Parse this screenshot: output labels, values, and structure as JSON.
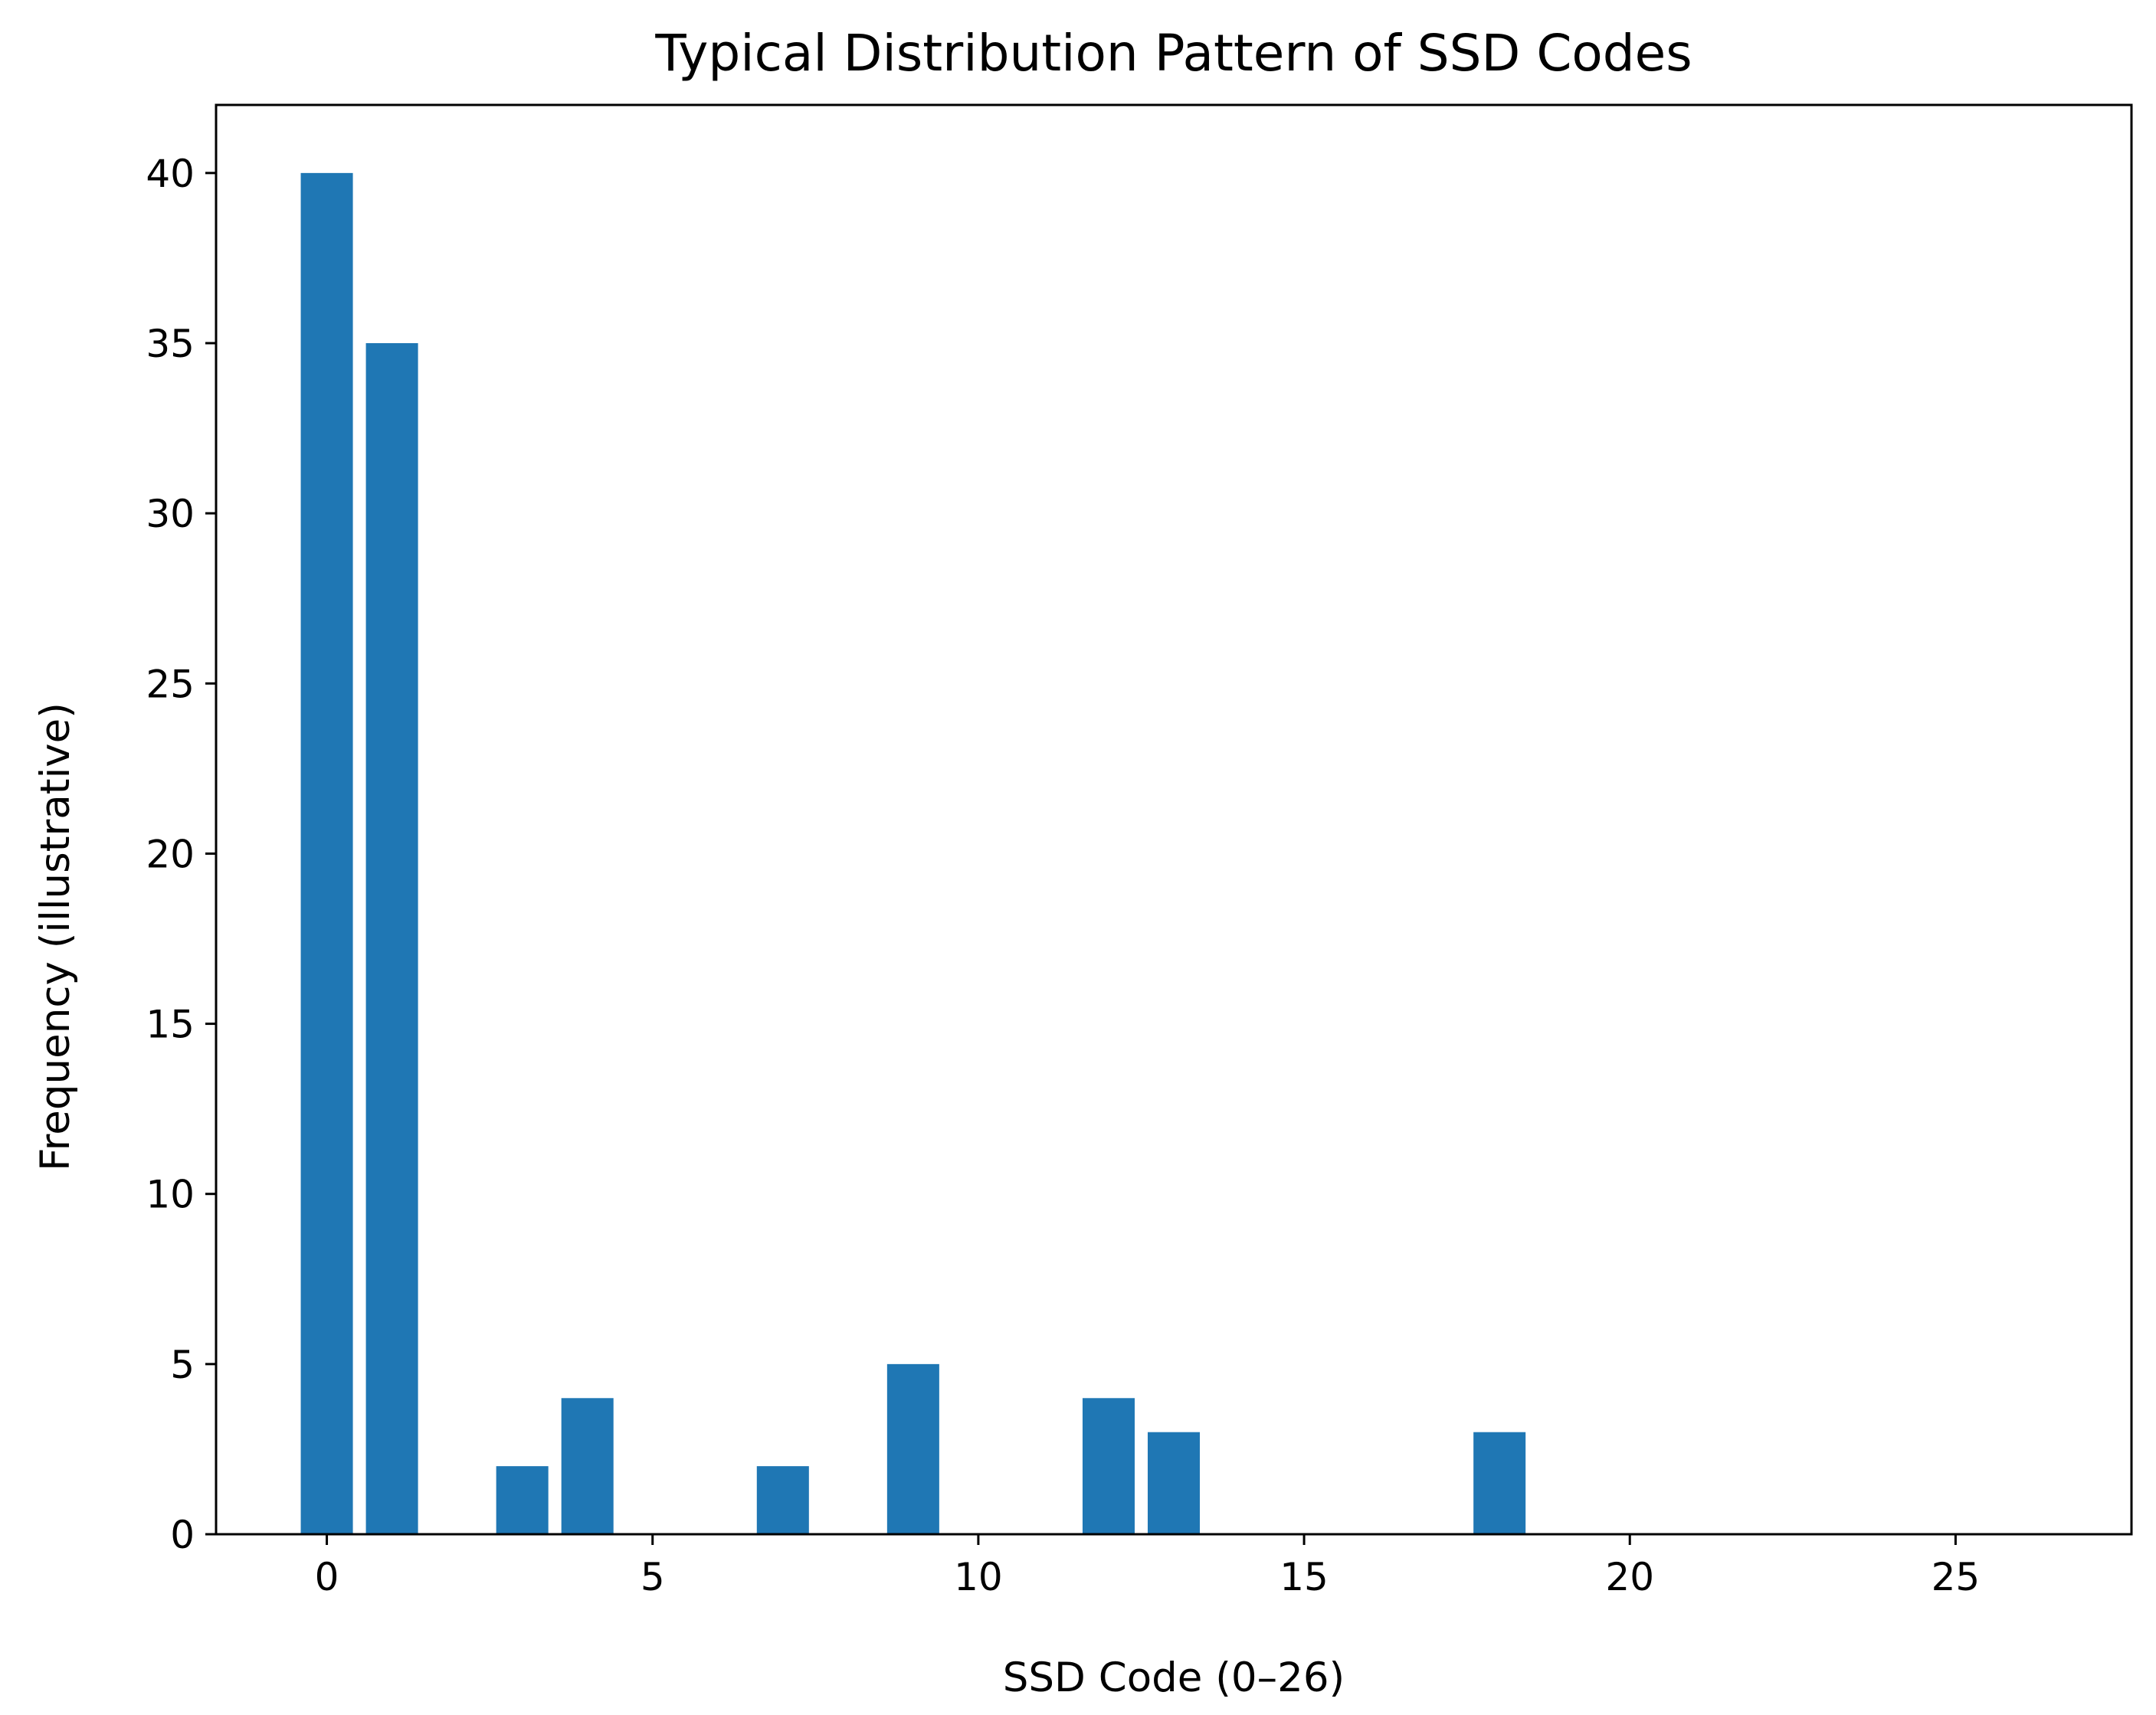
{
  "chart_data": {
    "type": "bar",
    "title": "Typical Distribution Pattern of SSD Codes",
    "xlabel": "SSD Code (0–26)",
    "ylabel": "Frequency (illustrative)",
    "x": [
      0,
      1,
      2,
      3,
      4,
      5,
      6,
      7,
      8,
      9,
      10,
      11,
      12,
      13,
      14,
      15,
      16,
      17,
      18,
      19,
      20,
      21,
      22,
      23,
      24,
      25,
      26
    ],
    "values": [
      40,
      35,
      0,
      2,
      4,
      0,
      0,
      2,
      0,
      5,
      0,
      0,
      4,
      3,
      0,
      0,
      0,
      0,
      3,
      0,
      0,
      0,
      0,
      0,
      0,
      0,
      0
    ],
    "xlim": [
      -1.7,
      27.7
    ],
    "ylim": [
      0,
      42
    ],
    "xticks": [
      0,
      5,
      10,
      15,
      20,
      25
    ],
    "yticks": [
      0,
      5,
      10,
      15,
      20,
      25,
      30,
      35,
      40
    ],
    "xtick_labels": [
      "0",
      "5",
      "10",
      "15",
      "20",
      "25"
    ],
    "ytick_labels": [
      "0",
      "5",
      "10",
      "15",
      "20",
      "25",
      "30",
      "35",
      "40"
    ],
    "bar_width_units": 0.8,
    "bar_color": "#1f77b4",
    "grid": false,
    "legend": "none"
  }
}
